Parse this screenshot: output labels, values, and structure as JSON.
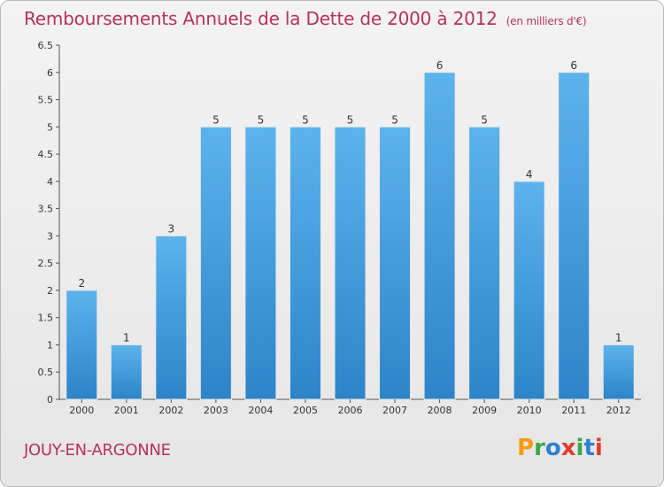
{
  "header": {
    "title": "Remboursements Annuels de la Dette de 2000 à 2012",
    "subtitle": "(en milliers d'€)"
  },
  "footer": {
    "commune": "JOUY-EN-ARGONNE",
    "brand": "Proxiti",
    "brand_colors": [
      "#f39c12",
      "#3aa84a",
      "#2f7fd1",
      "#e23b2e",
      "#3aa84a",
      "#2f7fd1",
      "#e23b2e"
    ]
  },
  "colors": {
    "accent": "#b5325c",
    "bar_light": "#5cb3ec",
    "bar_dark": "#2d84c8"
  },
  "chart_data": {
    "type": "bar",
    "categories": [
      "2000",
      "2001",
      "2002",
      "2003",
      "2004",
      "2005",
      "2006",
      "2007",
      "2008",
      "2009",
      "2010",
      "2011",
      "2012"
    ],
    "values": [
      2,
      1,
      3,
      5,
      5,
      5,
      5,
      5,
      6,
      5,
      4,
      6,
      1
    ],
    "y_tick_labels": [
      "0",
      "0.5",
      "1",
      "1.5",
      "2",
      "2.5",
      "3",
      "3.5",
      "4",
      "4.5",
      "5",
      "5.5",
      "6",
      "6.5"
    ],
    "ylim": [
      0,
      6.5
    ],
    "grid": false
  }
}
